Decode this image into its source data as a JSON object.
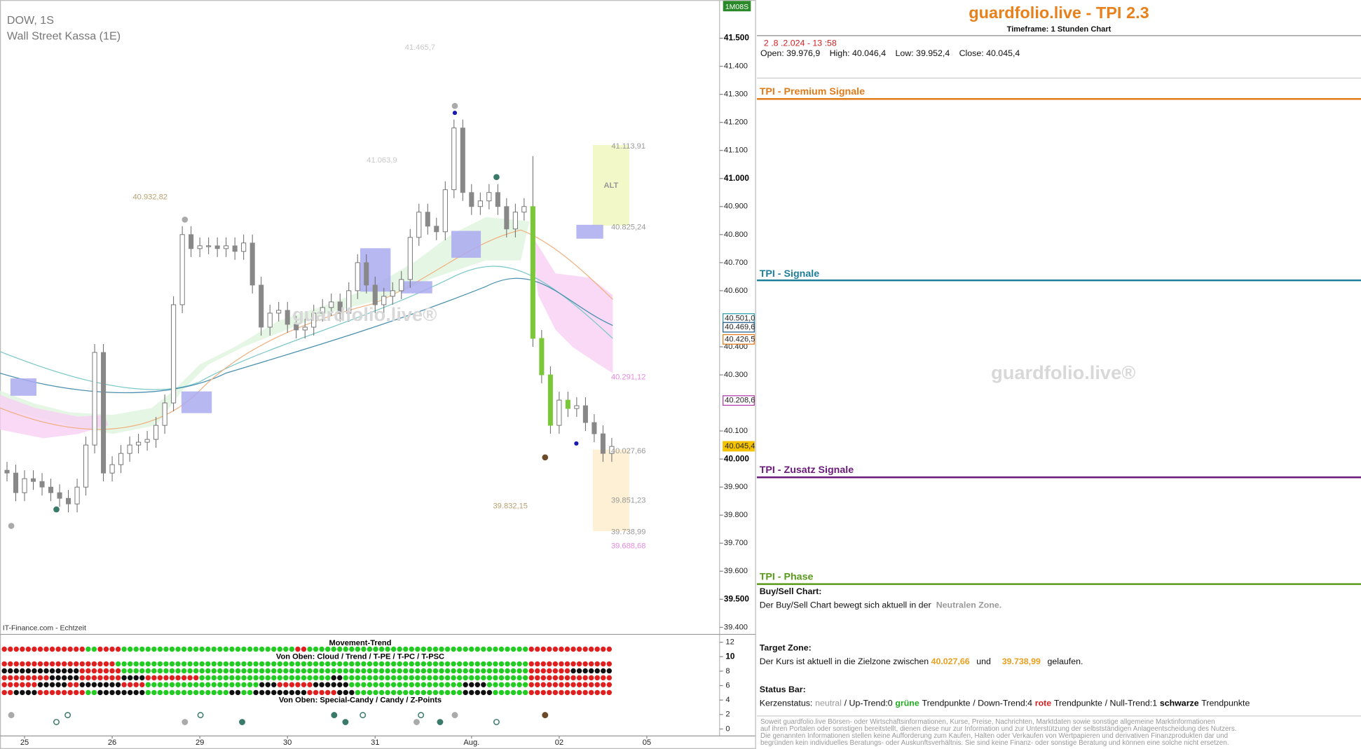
{
  "chart": {
    "symbol": "DOW, 1S",
    "name": "Wall Street Kassa (1E)",
    "source": "IT-Finance.com - Echtzeit",
    "timer": "1M08S",
    "watermark": "guardfolio.live®",
    "alt_label": "ALT",
    "ylim": [
      39378,
      41636
    ],
    "yticks": [
      {
        "value": 41500,
        "label": "41.500"
      },
      {
        "value": 41400,
        "label": "41.400"
      },
      {
        "value": 41300,
        "label": "41.300"
      },
      {
        "value": 41200,
        "label": "41.200"
      },
      {
        "value": 41100,
        "label": "41.100"
      },
      {
        "value": 41000,
        "label": "41.000"
      },
      {
        "value": 40900,
        "label": "40.900"
      },
      {
        "value": 40800,
        "label": "40.800"
      },
      {
        "value": 40700,
        "label": "40.700"
      },
      {
        "value": 40600,
        "label": "40.600"
      },
      {
        "value": 40400,
        "label": "40.400"
      },
      {
        "value": 40300,
        "label": "40.300"
      },
      {
        "value": 40100,
        "label": "40.100"
      },
      {
        "value": 40000,
        "label": "40.000"
      },
      {
        "value": 39900,
        "label": "39.900"
      },
      {
        "value": 39800,
        "label": "39.800"
      },
      {
        "value": 39700,
        "label": "39.700"
      },
      {
        "value": 39600,
        "label": "39.600"
      },
      {
        "value": 39500,
        "label": "39.500"
      },
      {
        "value": 39400,
        "label": "39.400"
      }
    ],
    "xlim": [
      -0.8,
      81.2
    ],
    "xticks": [
      {
        "value": 2,
        "label": "25"
      },
      {
        "value": 12,
        "label": "26"
      },
      {
        "value": 22,
        "label": "29"
      },
      {
        "value": 32,
        "label": "30"
      },
      {
        "value": 42,
        "label": "31"
      },
      {
        "value": 53,
        "label": "Aug."
      },
      {
        "value": 63,
        "label": "02"
      },
      {
        "value": 73,
        "label": "05"
      }
    ],
    "axis_markers": [
      {
        "value": 40501.0,
        "label": "40.501,0",
        "color": "#2a9fb0"
      },
      {
        "value": 40469.6,
        "label": "40.469,6",
        "color": "#1e5a8a"
      },
      {
        "value": 40426.5,
        "label": "40.426,5",
        "color": "#e07b1a"
      },
      {
        "value": 40208.6,
        "label": "40.208,6",
        "color": "#b03aa8"
      },
      {
        "value": 40045.4,
        "label": "40.045,4",
        "color": "#f5c400"
      }
    ],
    "price_labels": [
      {
        "value": 41465.7,
        "label": "41.465,7",
        "color": "#c8c8c8"
      },
      {
        "value": 41063.9,
        "label": "41.063,9",
        "color": "#c8c8c8"
      },
      {
        "value": 40932.82,
        "label": "40.932,82",
        "color": "#b8a070"
      },
      {
        "value": 41113.91,
        "label": "41.113,91",
        "color": "#999"
      },
      {
        "value": 40825.24,
        "label": "40.825,24",
        "color": "#999"
      },
      {
        "value": 40291.12,
        "label": "40.291,12",
        "color": "#e58ae0"
      },
      {
        "value": 40027.66,
        "label": "40.027,66",
        "color": "#999"
      },
      {
        "value": 39851.23,
        "label": "39.851,23",
        "color": "#999"
      },
      {
        "value": 39738.99,
        "label": "39.738,99",
        "color": "#999"
      },
      {
        "value": 39688.68,
        "label": "39.688,68",
        "color": "#e58ae0"
      },
      {
        "value": 39832.15,
        "label": "39.832,15",
        "color": "#b8a070"
      }
    ],
    "candles": {
      "x": [
        0,
        1,
        2,
        3,
        4,
        5,
        6,
        7,
        8,
        9,
        10,
        11,
        12,
        13,
        14,
        15,
        16,
        17,
        18,
        19,
        20,
        21,
        22,
        23,
        24,
        25,
        26,
        27,
        28,
        29,
        30,
        31,
        32,
        33,
        34,
        35,
        36,
        37,
        38,
        39,
        40,
        41,
        42,
        43,
        44,
        45,
        46,
        47,
        48,
        49,
        50,
        51,
        52,
        53,
        54,
        55,
        56,
        57,
        58,
        59,
        60,
        61,
        62,
        63,
        64,
        65,
        66,
        67,
        68,
        69
      ],
      "open": [
        39960,
        39950,
        39880,
        39930,
        39920,
        39900,
        39880,
        39860,
        39840,
        39900,
        40050,
        40380,
        39950,
        39980,
        40020,
        40050,
        40060,
        40070,
        40120,
        40200,
        40550,
        40800,
        40750,
        40760,
        40760,
        40750,
        40760,
        40740,
        40770,
        40620,
        40470,
        40520,
        40530,
        40480,
        40460,
        40470,
        40520,
        40540,
        40560,
        40520,
        40600,
        40700,
        40620,
        40550,
        40580,
        40600,
        40640,
        40790,
        40880,
        40830,
        40810,
        40960,
        41180,
        40950,
        40900,
        40920,
        40950,
        40900,
        40820,
        40880,
        40900,
        40430,
        40300,
        40120,
        40210,
        40180,
        40190,
        40130,
        40090,
        40020
      ],
      "high": [
        39990,
        39980,
        39960,
        39960,
        39950,
        39930,
        39910,
        39890,
        39930,
        40080,
        40410,
        40410,
        40010,
        40050,
        40080,
        40090,
        40100,
        40150,
        40230,
        40580,
        40830,
        40830,
        40790,
        40790,
        40790,
        40790,
        40790,
        40800,
        40800,
        40650,
        40550,
        40560,
        40560,
        40510,
        40500,
        40550,
        40570,
        40590,
        40590,
        40630,
        40730,
        40730,
        40650,
        40610,
        40630,
        40670,
        40820,
        40910,
        40910,
        40860,
        40990,
        41210,
        41210,
        40980,
        40950,
        40980,
        40980,
        40930,
        40910,
        40930,
        41080,
        40460,
        40330,
        40240,
        40240,
        40220,
        40220,
        40160,
        40120,
        40075
      ],
      "low": [
        39920,
        39850,
        39850,
        39890,
        39870,
        39850,
        39830,
        39810,
        39810,
        39870,
        40020,
        39920,
        39920,
        39950,
        39990,
        40020,
        40030,
        40040,
        40090,
        40170,
        40520,
        40720,
        40720,
        40730,
        40720,
        40720,
        40710,
        40710,
        40590,
        40440,
        40440,
        40490,
        40450,
        40430,
        40430,
        40440,
        40490,
        40510,
        40490,
        40490,
        40570,
        40590,
        40520,
        40520,
        40550,
        40570,
        40610,
        40760,
        40800,
        40780,
        40780,
        40930,
        40920,
        40870,
        40870,
        40890,
        40870,
        40790,
        40790,
        40850,
        40400,
        40270,
        40090,
        40090,
        40150,
        40150,
        40100,
        40060,
        39990,
        39990
      ],
      "close": [
        39950,
        39880,
        39930,
        39920,
        39900,
        39880,
        39860,
        39840,
        39900,
        40050,
        40380,
        39950,
        39980,
        40020,
        40050,
        40060,
        40070,
        40120,
        40200,
        40550,
        40800,
        40750,
        40760,
        40760,
        40750,
        40760,
        40740,
        40770,
        40620,
        40470,
        40520,
        40530,
        40480,
        40460,
        40470,
        40520,
        40540,
        40560,
        40520,
        40600,
        40700,
        40620,
        40550,
        40580,
        40600,
        40640,
        40790,
        40880,
        40830,
        40810,
        40960,
        41180,
        40950,
        40900,
        40920,
        40950,
        40900,
        40820,
        40880,
        40900,
        40430,
        40300,
        40120,
        40210,
        40180,
        40190,
        40130,
        40090,
        40020,
        40045
      ]
    }
  },
  "indicator": {
    "titles": [
      "Movement-Trend",
      "Von Oben: Cloud / Trend / T-PE / T-PC / T-PSC",
      "Von Oben: Special-Candy / Candy / Z-Points"
    ],
    "ylim": [
      -0.96,
      12.96
    ],
    "yticks": [
      12,
      10,
      8,
      6,
      4,
      2,
      0
    ]
  },
  "panel": {
    "title": "guardfolio.live - TPI 2.3",
    "timeframe": "Timeframe: 1 Stunden Chart",
    "datetime": "2 .8 .2.024 - 13 :58",
    "ohlc": [
      "Open: 39.976,9",
      "High: 40.046,4",
      "Low: 39.952,4",
      "Close: 40.045,4"
    ],
    "sections": [
      "TPI - Premium Signale",
      "TPI - Signale",
      "TPI - Zusatz Signale",
      "TPI - Phase"
    ],
    "watermark": "guardfolio.live®",
    "buy_sell": {
      "heading": "Buy/Sell Chart:",
      "text": "Der Buy/Sell Chart bewegt sich aktuell in der",
      "zone": "Neutralen Zone."
    },
    "target": {
      "heading": "Target Zone:",
      "text": "Der Kurs ist aktuell in die Zielzone zwischen",
      "from": "40.027,66",
      "and": "und",
      "to": "39.738,99",
      "end": "gelaufen."
    },
    "status": {
      "heading": "Status Bar:",
      "parts": [
        "Kerzenstatus:",
        "neutral",
        "/ Up-Trend:0",
        "grüne",
        "Trendpunkte",
        "/ Down-Trend:4",
        "rote",
        "Trendpunkte",
        "/ Null-Trend:1",
        "schwarze",
        "Trendpunkte"
      ]
    },
    "disclaimer": [
      "Soweit guardfolio.live Börsen- oder Wirtschaftsinformationen, Kurse, Preise, Nachrichten, Marktdaten sowie sonstige allgemeine Marktinformationen",
      "auf ihren Portalen oder sonstigen bereitstellt, dienen diese nur zur Information und zur Unterstützung der selbstständigen Anlageentscheidung des Nutzers.",
      "Die genannten Informationen stellen keine Aufforderung zum Kaufen, Halten oder Verkaufen von Wertpapieren und derivativen Finanzprodukten dar und",
      "begründen kein individuelles Beratungs- oder Auskunftsverhältnis. Sie sind keine Finanz- oder sonstige Beratung und können eine solche nicht ersetzen."
    ]
  }
}
